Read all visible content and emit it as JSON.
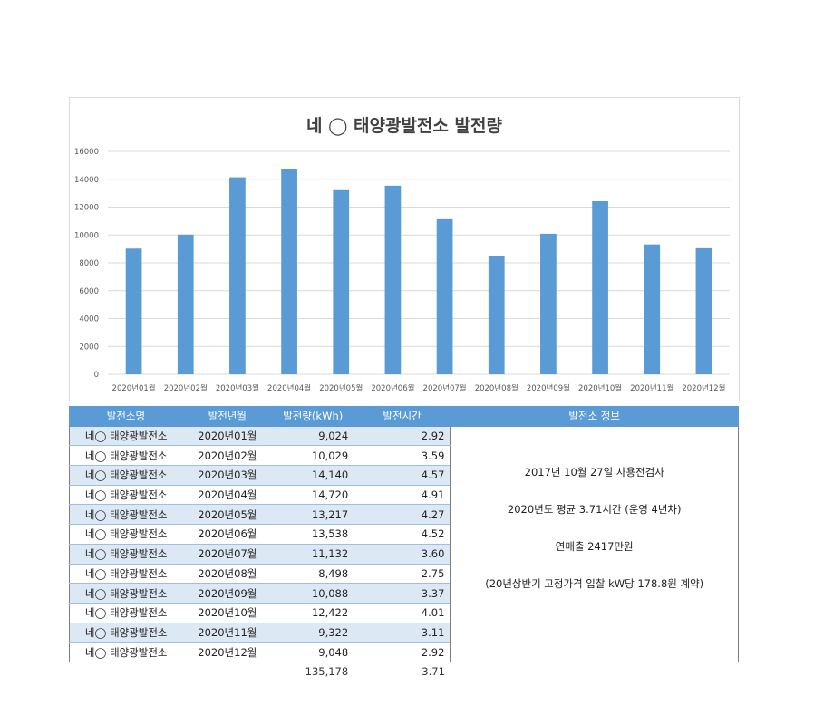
{
  "chart_data": {
    "type": "bar",
    "title": "네 ◯ 태양광발전소 발전량",
    "categories": [
      "2020년01월",
      "2020년02월",
      "2020년03월",
      "2020년04월",
      "2020년05월",
      "2020년06월",
      "2020년07월",
      "2020년08월",
      "2020년09월",
      "2020년10월",
      "2020년11월",
      "2020년12월"
    ],
    "values": [
      9024,
      10029,
      14140,
      14720,
      13217,
      13538,
      11132,
      8498,
      10088,
      12422,
      9322,
      9048
    ],
    "ylim": [
      0,
      16000
    ],
    "yticks": [
      0,
      2000,
      4000,
      6000,
      8000,
      10000,
      12000,
      14000,
      16000
    ],
    "grid": true,
    "color": "#5b9bd5"
  },
  "table": {
    "headers": [
      "발전소명",
      "발전년월",
      "발전량(kWh)",
      "발전시간",
      "발전소 정보"
    ],
    "rows": [
      {
        "name": "네◯ 태양광발전소",
        "month": "2020년01월",
        "kwh": "9,024",
        "hours": "2.92"
      },
      {
        "name": "네◯ 태양광발전소",
        "month": "2020년02월",
        "kwh": "10,029",
        "hours": "3.59"
      },
      {
        "name": "네◯ 태양광발전소",
        "month": "2020년03월",
        "kwh": "14,140",
        "hours": "4.57"
      },
      {
        "name": "네◯ 태양광발전소",
        "month": "2020년04월",
        "kwh": "14,720",
        "hours": "4.91"
      },
      {
        "name": "네◯ 태양광발전소",
        "month": "2020년05월",
        "kwh": "13,217",
        "hours": "4.27"
      },
      {
        "name": "네◯ 태양광발전소",
        "month": "2020년06월",
        "kwh": "13,538",
        "hours": "4.52"
      },
      {
        "name": "네◯ 태양광발전소",
        "month": "2020년07월",
        "kwh": "11,132",
        "hours": "3.60"
      },
      {
        "name": "네◯ 태양광발전소",
        "month": "2020년08월",
        "kwh": "8,498",
        "hours": "2.75"
      },
      {
        "name": "네◯ 태양광발전소",
        "month": "2020년09월",
        "kwh": "10,088",
        "hours": "3.37"
      },
      {
        "name": "네◯ 태양광발전소",
        "month": "2020년10월",
        "kwh": "12,422",
        "hours": "4.01"
      },
      {
        "name": "네◯ 태양광발전소",
        "month": "2020년11월",
        "kwh": "9,322",
        "hours": "3.11"
      },
      {
        "name": "네◯ 태양광발전소",
        "month": "2020년12월",
        "kwh": "9,048",
        "hours": "2.92"
      }
    ],
    "total": {
      "kwh": "135,178",
      "hours": "3.71"
    },
    "info": [
      "2017년 10월 27일 사용전검사",
      "2020년도 평균 3.71시간 (운영 4년차)",
      "연매출 2417만원",
      "(20년상반기 고정가격 입찰 kW당 178.8원 계약)"
    ]
  }
}
